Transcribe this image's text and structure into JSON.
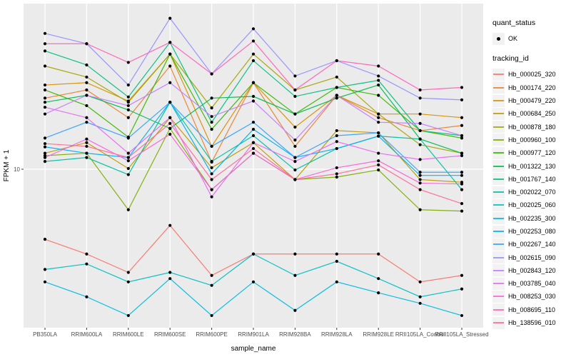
{
  "legend": {
    "quant_status_title": "quant_status",
    "ok_label": "OK",
    "tracking_title": "tracking_id",
    "key_background": "#f2f2f2",
    "marker_color": "#000000"
  },
  "panel": {
    "background": "#ebebeb",
    "gridline_color": "#ffffff",
    "tick_color": "#333333",
    "tick_label_color": "#4d4d4d"
  },
  "chart_data": {
    "type": "line",
    "title": "",
    "xlabel": "sample_name",
    "ylabel": "FPKM + 1",
    "y_scale": "log10",
    "y_tick_labels": [
      "10"
    ],
    "y_tick_values": [
      10
    ],
    "ylim_approx": [
      1.2,
      90
    ],
    "grid": "ggplot-grey",
    "legend_position": "right",
    "marker": {
      "shape": "point",
      "color": "#000000",
      "legend_label": "OK"
    },
    "categories": [
      "PB350LA",
      "RRIM600LA",
      "RRIM600LE",
      "RRIM600SE",
      "RRIM600PE",
      "RRIM901LA",
      "RRIM928BA",
      "RRIM928LA",
      "RRIM928LE",
      "RRII105LA_Control",
      "RRII105LA_Stressed"
    ],
    "series": [
      {
        "name": "Hb_000025_320",
        "color": "#F8766D",
        "values": [
          3.9,
          3.2,
          2.5,
          4.7,
          2.4,
          3.2,
          3.2,
          3.2,
          3.2,
          2.2,
          2.4
        ]
      },
      {
        "name": "Hb_000174_220",
        "color": "#EA8331",
        "values": [
          26,
          29,
          20,
          40,
          11,
          32,
          13.6,
          27,
          20,
          16.8,
          18
        ]
      },
      {
        "name": "Hb_000479_220",
        "color": "#D89000",
        "values": [
          31,
          32,
          25,
          47,
          13.6,
          32,
          17.6,
          27,
          21,
          21,
          20
        ]
      },
      {
        "name": "Hb_000684_250",
        "color": "#C09B00",
        "values": [
          12.4,
          14.3,
          10.1,
          20,
          10.2,
          14.3,
          8.7,
          16.8,
          16.3,
          8.7,
          8.4
        ]
      },
      {
        "name": "Hb_000878_180",
        "color": "#A3A500",
        "values": [
          40,
          34.5,
          24.6,
          47,
          22.8,
          47,
          29,
          34.5,
          21,
          13.9,
          12.4
        ]
      },
      {
        "name": "Hb_000960_100",
        "color": "#7CAE00",
        "values": [
          12,
          12.4,
          5.8,
          17.3,
          7.6,
          12.4,
          8.7,
          9,
          9.9,
          5.8,
          5.7
        ]
      },
      {
        "name": "Hb_000977_120",
        "color": "#39B600",
        "values": [
          29,
          23.5,
          15.4,
          47,
          17.1,
          32,
          21,
          30,
          27,
          16.8,
          15.2
        ]
      },
      {
        "name": "Hb_001322_130",
        "color": "#00BB4E",
        "values": [
          24.6,
          27,
          22.2,
          17.3,
          26,
          26.6,
          21,
          26,
          31,
          15,
          12.4
        ]
      },
      {
        "name": "Hb_001767_140",
        "color": "#00BF7D",
        "values": [
          49,
          40.6,
          26.4,
          55,
          18.8,
          43,
          26.6,
          30,
          33,
          16.8,
          15.7
        ]
      },
      {
        "name": "Hb_002022_070",
        "color": "#00C1A3",
        "values": [
          11.1,
          11.7,
          9.3,
          24.6,
          11.1,
          15.7,
          9.9,
          13.2,
          15.6,
          15,
          7.6
        ]
      },
      {
        "name": "Hb_002025_060",
        "color": "#00BFC4",
        "values": [
          2.6,
          2.8,
          2.2,
          2.5,
          2.1,
          3.2,
          2.4,
          2.9,
          2.3,
          1.8,
          2.0
        ]
      },
      {
        "name": "Hb_002235_300",
        "color": "#00BAE0",
        "values": [
          2.2,
          1.8,
          1.4,
          2.3,
          1.4,
          2.2,
          1.5,
          2.2,
          1.9,
          1.65,
          1.4
        ]
      },
      {
        "name": "Hb_002253_080",
        "color": "#00B0F6",
        "values": [
          13.5,
          12.4,
          11.7,
          24.6,
          9.4,
          17.1,
          11.7,
          13.2,
          15.6,
          9.2,
          9.2
        ]
      },
      {
        "name": "Hb_002267_140",
        "color": "#35A2FF",
        "values": [
          15.2,
          18.8,
          15.2,
          24.6,
          13.6,
          18.8,
          11.7,
          15.7,
          16.3,
          9.6,
          9.6
        ]
      },
      {
        "name": "Hb_002615_090",
        "color": "#9590FF",
        "values": [
          62,
          54,
          31,
          76,
          36,
          66,
          35,
          43,
          35,
          26,
          25.4
        ]
      },
      {
        "name": "Hb_002843_120",
        "color": "#C77CFF",
        "values": [
          21,
          27,
          23.5,
          32,
          20.3,
          25,
          14.8,
          27,
          18.8,
          18.5,
          15.7
        ]
      },
      {
        "name": "Hb_003785_040",
        "color": "#E76BF3",
        "values": [
          23,
          20,
          12.4,
          20,
          6.9,
          14.3,
          11.1,
          14.5,
          12.4,
          11.4,
          12
        ]
      },
      {
        "name": "Hb_008253_030",
        "color": "#FA62DB",
        "values": [
          11.7,
          15,
          11.2,
          16,
          7.6,
          12.4,
          8.7,
          10.2,
          11.2,
          8.3,
          8.2
        ]
      },
      {
        "name": "Hb_008695_110",
        "color": "#FF62BC",
        "values": [
          54,
          54,
          42,
          55,
          36,
          56,
          29,
          43,
          40,
          29,
          30
        ]
      },
      {
        "name": "Hb_138596_010",
        "color": "#FF6A98",
        "values": [
          14.1,
          13.6,
          11.7,
          18.5,
          8.7,
          13.2,
          8.7,
          9.4,
          10.6,
          7.6,
          6.3
        ]
      }
    ]
  }
}
